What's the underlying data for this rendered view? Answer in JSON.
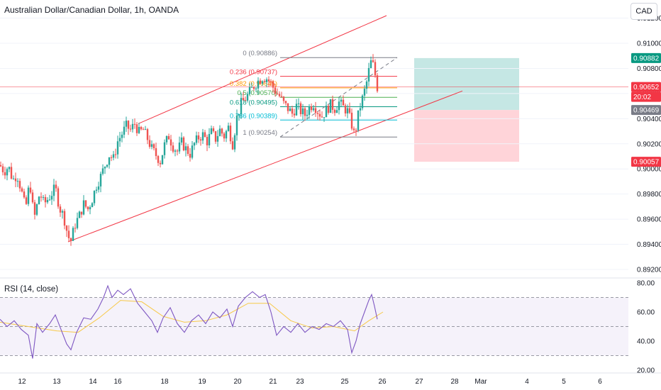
{
  "header": {
    "title": "Australian Dollar/Canadian Dollar, 1h, OANDA",
    "currency": "CAD"
  },
  "rsi": {
    "label": "RSI (14, close)"
  },
  "colors": {
    "up": "#26a69a",
    "down": "#ef5350",
    "channel": "#f23645",
    "rsi_line": "#7e57c2",
    "rsi_ma": "#f7c948",
    "tp_zone": "#b2dfdb",
    "sl_zone": "#ffcdd2"
  },
  "chart_data": [
    {
      "type": "candlestick",
      "title": "Australian Dollar/Canadian Dollar, 1h, OANDA",
      "x_tick_labels": [
        "12",
        "13",
        "14",
        "16",
        "18",
        "19",
        "20",
        "21",
        "23",
        "25",
        "26",
        "27",
        "28",
        "Mar",
        "4",
        "5",
        "6"
      ],
      "y_tick_labels": [
        "0.91200",
        "0.91000",
        "0.90800",
        "0.90600",
        "0.90400",
        "0.90200",
        "0.90000",
        "0.89800",
        "0.89600",
        "0.89400",
        "0.89200"
      ],
      "ylim": [
        0.8915,
        0.9124
      ],
      "price_points": [
        {
          "x": 0,
          "y": 0.9003
        },
        {
          "x": 6,
          "y": 0.8998
        },
        {
          "x": 12,
          "y": 0.9002
        },
        {
          "x": 18,
          "y": 0.8991
        },
        {
          "x": 24,
          "y": 0.8996
        },
        {
          "x": 30,
          "y": 0.8983
        },
        {
          "x": 36,
          "y": 0.8968
        },
        {
          "x": 42,
          "y": 0.899
        },
        {
          "x": 48,
          "y": 0.896
        },
        {
          "x": 56,
          "y": 0.8981
        },
        {
          "x": 62,
          "y": 0.8972
        },
        {
          "x": 70,
          "y": 0.8978
        },
        {
          "x": 78,
          "y": 0.8985
        },
        {
          "x": 84,
          "y": 0.8969
        },
        {
          "x": 90,
          "y": 0.8962
        },
        {
          "x": 96,
          "y": 0.8946
        },
        {
          "x": 100,
          "y": 0.8943
        },
        {
          "x": 106,
          "y": 0.8956
        },
        {
          "x": 112,
          "y": 0.8963
        },
        {
          "x": 118,
          "y": 0.8972
        },
        {
          "x": 124,
          "y": 0.8968
        },
        {
          "x": 130,
          "y": 0.8976
        },
        {
          "x": 136,
          "y": 0.8987
        },
        {
          "x": 142,
          "y": 0.8994
        },
        {
          "x": 148,
          "y": 0.9003
        },
        {
          "x": 154,
          "y": 0.9011
        },
        {
          "x": 160,
          "y": 0.9008
        },
        {
          "x": 166,
          "y": 0.9022
        },
        {
          "x": 172,
          "y": 0.9028
        },
        {
          "x": 178,
          "y": 0.9034
        },
        {
          "x": 184,
          "y": 0.9031
        },
        {
          "x": 190,
          "y": 0.9036
        },
        {
          "x": 196,
          "y": 0.9029
        },
        {
          "x": 202,
          "y": 0.9031
        },
        {
          "x": 208,
          "y": 0.9024
        },
        {
          "x": 214,
          "y": 0.9016
        },
        {
          "x": 220,
          "y": 0.9011
        },
        {
          "x": 226,
          "y": 0.9006
        },
        {
          "x": 232,
          "y": 0.9019
        },
        {
          "x": 238,
          "y": 0.9026
        },
        {
          "x": 244,
          "y": 0.9018
        },
        {
          "x": 250,
          "y": 0.9014
        },
        {
          "x": 256,
          "y": 0.9021
        },
        {
          "x": 262,
          "y": 0.9016
        },
        {
          "x": 268,
          "y": 0.9012
        },
        {
          "x": 274,
          "y": 0.902
        },
        {
          "x": 280,
          "y": 0.9025
        },
        {
          "x": 286,
          "y": 0.9027
        },
        {
          "x": 292,
          "y": 0.9022
        },
        {
          "x": 298,
          "y": 0.9029
        },
        {
          "x": 304,
          "y": 0.9024
        },
        {
          "x": 310,
          "y": 0.9031
        },
        {
          "x": 316,
          "y": 0.9026
        },
        {
          "x": 322,
          "y": 0.9033
        },
        {
          "x": 328,
          "y": 0.902
        },
        {
          "x": 334,
          "y": 0.9041
        },
        {
          "x": 340,
          "y": 0.9052
        },
        {
          "x": 346,
          "y": 0.9056
        },
        {
          "x": 352,
          "y": 0.9061
        },
        {
          "x": 358,
          "y": 0.9066
        },
        {
          "x": 364,
          "y": 0.907
        },
        {
          "x": 370,
          "y": 0.9073
        },
        {
          "x": 376,
          "y": 0.9072
        },
        {
          "x": 382,
          "y": 0.9068
        },
        {
          "x": 388,
          "y": 0.9062
        },
        {
          "x": 394,
          "y": 0.9058
        },
        {
          "x": 400,
          "y": 0.9052
        },
        {
          "x": 406,
          "y": 0.9048
        },
        {
          "x": 412,
          "y": 0.9044
        },
        {
          "x": 418,
          "y": 0.905
        },
        {
          "x": 424,
          "y": 0.9046
        },
        {
          "x": 430,
          "y": 0.9043
        },
        {
          "x": 436,
          "y": 0.9049
        },
        {
          "x": 442,
          "y": 0.9052
        },
        {
          "x": 448,
          "y": 0.9046
        },
        {
          "x": 454,
          "y": 0.9042
        },
        {
          "x": 460,
          "y": 0.9047
        },
        {
          "x": 466,
          "y": 0.9051
        },
        {
          "x": 472,
          "y": 0.9048
        },
        {
          "x": 478,
          "y": 0.9053
        },
        {
          "x": 484,
          "y": 0.9049
        },
        {
          "x": 490,
          "y": 0.9046
        },
        {
          "x": 496,
          "y": 0.9035
        },
        {
          "x": 500,
          "y": 0.9026
        },
        {
          "x": 504,
          "y": 0.904
        },
        {
          "x": 508,
          "y": 0.905
        },
        {
          "x": 512,
          "y": 0.9058
        },
        {
          "x": 516,
          "y": 0.9066
        },
        {
          "x": 520,
          "y": 0.9078
        },
        {
          "x": 524,
          "y": 0.9087
        },
        {
          "x": 528,
          "y": 0.9078
        },
        {
          "x": 532,
          "y": 0.9065
        }
      ],
      "channel_upper": [
        {
          "x": 195,
          "y": 0.9036
        },
        {
          "x": 545,
          "y": 0.9122
        }
      ],
      "channel_lower": [
        {
          "x": 96,
          "y": 0.8942
        },
        {
          "x": 652,
          "y": 0.9062
        }
      ],
      "fib_levels": [
        {
          "label": "0 (0.90886)",
          "value": 0.90886,
          "color": "#787b86"
        },
        {
          "label": "0.236 (0.90737)",
          "value": 0.90737,
          "color": "#f23645"
        },
        {
          "label": "0.382 (0.90645)",
          "value": 0.90645,
          "color": "#ff9800"
        },
        {
          "label": "0.5 (0.90570)",
          "value": 0.9057,
          "color": "#4caf50"
        },
        {
          "label": "0.618 (0.90495)",
          "value": 0.90495,
          "color": "#089981"
        },
        {
          "label": "0.786 (0.90389)",
          "value": 0.90389,
          "color": "#00bcd4"
        },
        {
          "label": "1 (0.90254)",
          "value": 0.90254,
          "color": "#787b86"
        }
      ],
      "position": {
        "target": 0.90882,
        "entry": 0.90469,
        "stop": 0.90057
      },
      "price_tags": [
        {
          "text": "0.90882",
          "value": 0.90882,
          "color": "#089981"
        },
        {
          "text": "0.90652",
          "value": 0.90652,
          "color": "#f23645"
        },
        {
          "text": "20:02",
          "value": 0.90652,
          "color": "#f23645",
          "below": true
        },
        {
          "text": "0.90469",
          "value": 0.90469,
          "color": "#787b86"
        },
        {
          "text": "0.90057",
          "value": 0.90057,
          "color": "#f23645"
        }
      ]
    },
    {
      "type": "line",
      "title": "RSI (14, close)",
      "y_tick_labels": [
        "80.00",
        "60.00",
        "40.00",
        "20.00"
      ],
      "ylim": [
        18,
        82
      ],
      "levels": [
        70,
        50,
        30
      ],
      "rsi_points": [
        {
          "x": 0,
          "y": 55
        },
        {
          "x": 10,
          "y": 50
        },
        {
          "x": 20,
          "y": 54
        },
        {
          "x": 30,
          "y": 48
        },
        {
          "x": 40,
          "y": 44
        },
        {
          "x": 46,
          "y": 28
        },
        {
          "x": 52,
          "y": 52
        },
        {
          "x": 60,
          "y": 46
        },
        {
          "x": 70,
          "y": 52
        },
        {
          "x": 78,
          "y": 58
        },
        {
          "x": 86,
          "y": 48
        },
        {
          "x": 94,
          "y": 38
        },
        {
          "x": 100,
          "y": 34
        },
        {
          "x": 108,
          "y": 46
        },
        {
          "x": 118,
          "y": 56
        },
        {
          "x": 128,
          "y": 55
        },
        {
          "x": 138,
          "y": 62
        },
        {
          "x": 146,
          "y": 70
        },
        {
          "x": 152,
          "y": 78
        },
        {
          "x": 158,
          "y": 70
        },
        {
          "x": 166,
          "y": 75
        },
        {
          "x": 174,
          "y": 72
        },
        {
          "x": 184,
          "y": 76
        },
        {
          "x": 194,
          "y": 66
        },
        {
          "x": 204,
          "y": 60
        },
        {
          "x": 214,
          "y": 54
        },
        {
          "x": 222,
          "y": 46
        },
        {
          "x": 230,
          "y": 56
        },
        {
          "x": 240,
          "y": 63
        },
        {
          "x": 250,
          "y": 52
        },
        {
          "x": 260,
          "y": 46
        },
        {
          "x": 270,
          "y": 54
        },
        {
          "x": 280,
          "y": 58
        },
        {
          "x": 290,
          "y": 52
        },
        {
          "x": 300,
          "y": 60
        },
        {
          "x": 310,
          "y": 56
        },
        {
          "x": 320,
          "y": 62
        },
        {
          "x": 328,
          "y": 50
        },
        {
          "x": 336,
          "y": 64
        },
        {
          "x": 346,
          "y": 70
        },
        {
          "x": 356,
          "y": 74
        },
        {
          "x": 366,
          "y": 70
        },
        {
          "x": 374,
          "y": 72
        },
        {
          "x": 382,
          "y": 60
        },
        {
          "x": 390,
          "y": 44
        },
        {
          "x": 400,
          "y": 50
        },
        {
          "x": 410,
          "y": 46
        },
        {
          "x": 420,
          "y": 52
        },
        {
          "x": 430,
          "y": 46
        },
        {
          "x": 440,
          "y": 50
        },
        {
          "x": 450,
          "y": 48
        },
        {
          "x": 460,
          "y": 52
        },
        {
          "x": 470,
          "y": 50
        },
        {
          "x": 480,
          "y": 54
        },
        {
          "x": 490,
          "y": 48
        },
        {
          "x": 496,
          "y": 32
        },
        {
          "x": 502,
          "y": 40
        },
        {
          "x": 508,
          "y": 52
        },
        {
          "x": 514,
          "y": 60
        },
        {
          "x": 520,
          "y": 68
        },
        {
          "x": 524,
          "y": 72
        },
        {
          "x": 528,
          "y": 64
        },
        {
          "x": 532,
          "y": 55
        }
      ],
      "ma_points": [
        {
          "x": 0,
          "y": 53
        },
        {
          "x": 40,
          "y": 50
        },
        {
          "x": 80,
          "y": 47
        },
        {
          "x": 110,
          "y": 46
        },
        {
          "x": 140,
          "y": 56
        },
        {
          "x": 170,
          "y": 68
        },
        {
          "x": 200,
          "y": 67
        },
        {
          "x": 230,
          "y": 57
        },
        {
          "x": 260,
          "y": 53
        },
        {
          "x": 290,
          "y": 54
        },
        {
          "x": 320,
          "y": 58
        },
        {
          "x": 350,
          "y": 66
        },
        {
          "x": 380,
          "y": 66
        },
        {
          "x": 410,
          "y": 54
        },
        {
          "x": 440,
          "y": 49
        },
        {
          "x": 470,
          "y": 50
        },
        {
          "x": 500,
          "y": 47
        },
        {
          "x": 520,
          "y": 54
        },
        {
          "x": 540,
          "y": 60
        }
      ]
    }
  ]
}
